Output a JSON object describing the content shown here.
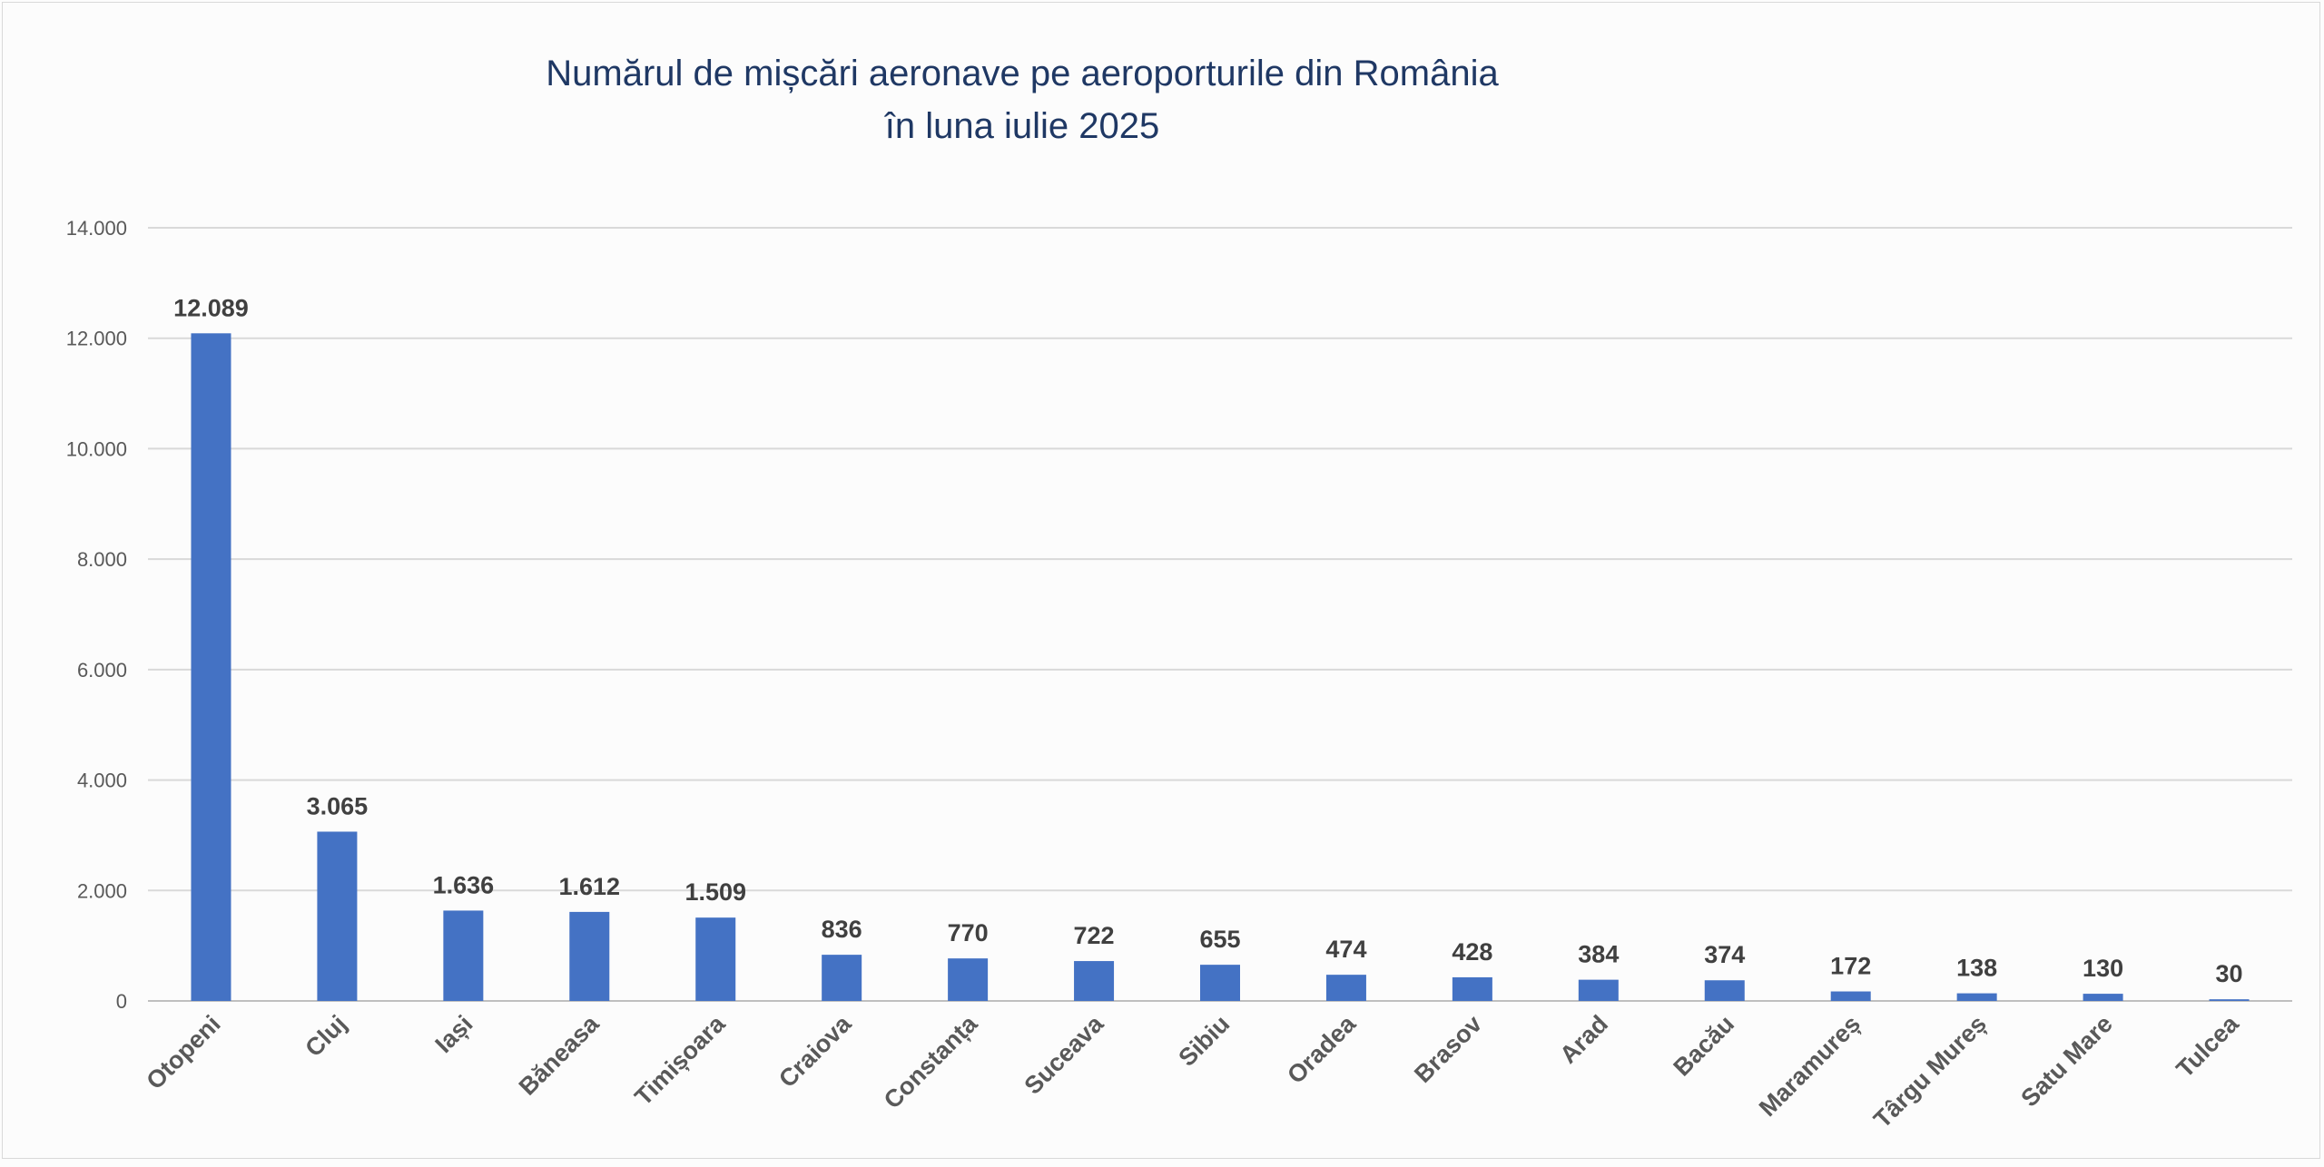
{
  "chart_data": {
    "type": "bar",
    "title_line1": "Numărul de mișcări aeronave pe aeroporturile din România",
    "title_line2": "în luna iulie 2025",
    "xlabel": "",
    "ylabel": "",
    "ylim": [
      0,
      14000
    ],
    "yticks": [
      0,
      2000,
      4000,
      6000,
      8000,
      10000,
      12000,
      14000
    ],
    "ytick_labels": [
      "0",
      "2.000",
      "4.000",
      "6.000",
      "8.000",
      "10.000",
      "12.000",
      "14.000"
    ],
    "grid": true,
    "legend": "none",
    "bar_color": "#4472c4",
    "categories": [
      "Otopeni",
      "Cluj",
      "Iași",
      "Băneasa",
      "Timișoara",
      "Craiova",
      "Constanța",
      "Suceava",
      "Sibiu",
      "Oradea",
      "Brasov",
      "Arad",
      "Bacău",
      "Maramureș",
      "Târgu Mureș",
      "Satu Mare",
      "Tulcea"
    ],
    "values": [
      12089,
      3065,
      1636,
      1612,
      1509,
      836,
      770,
      722,
      655,
      474,
      428,
      384,
      374,
      172,
      138,
      130,
      30
    ],
    "value_labels": [
      "12.089",
      "3.065",
      "1.636",
      "1.612",
      "1.509",
      "836",
      "770",
      "722",
      "655",
      "474",
      "428",
      "384",
      "374",
      "172",
      "138",
      "130",
      "30"
    ]
  }
}
